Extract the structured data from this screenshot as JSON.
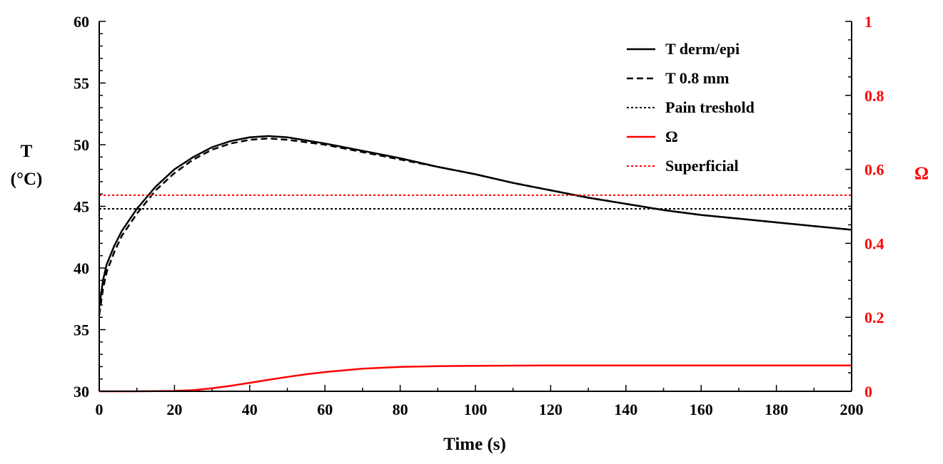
{
  "chart_data": {
    "type": "line",
    "xlabel": "Time (s)",
    "ylabel_line1": "T",
    "ylabel_line2": "(°C)",
    "y2label": "Ω",
    "xlim": [
      0,
      200
    ],
    "ylim": [
      30,
      60
    ],
    "y2lim": [
      0,
      1
    ],
    "xticks": [
      0,
      20,
      40,
      60,
      80,
      100,
      120,
      140,
      160,
      180,
      200
    ],
    "yticks": [
      30,
      35,
      40,
      45,
      50,
      55,
      60
    ],
    "y2ticks": [
      0,
      0.2,
      0.4,
      0.6,
      0.8,
      1
    ],
    "y2tick_labels": [
      "0",
      "0.2",
      "0.4",
      "0.6",
      "0.8",
      "1"
    ],
    "legend_position": "top-right",
    "colors": {
      "black": "#000000",
      "red": "#ff0000"
    },
    "series": [
      {
        "name": "T derm/epi",
        "axis": "left",
        "color": "#000000",
        "style": "solid",
        "x": [
          0,
          1,
          2,
          4,
          6,
          8,
          10,
          15,
          20,
          25,
          30,
          35,
          40,
          45,
          50,
          60,
          70,
          80,
          90,
          100,
          110,
          120,
          130,
          140,
          150,
          160,
          170,
          180,
          190,
          200
        ],
        "y": [
          36.8,
          39.0,
          40.3,
          41.8,
          43.0,
          43.9,
          44.8,
          46.6,
          48.0,
          49.0,
          49.8,
          50.3,
          50.6,
          50.7,
          50.6,
          50.1,
          49.5,
          48.9,
          48.2,
          47.6,
          46.9,
          46.3,
          45.7,
          45.2,
          44.7,
          44.3,
          44.0,
          43.7,
          43.4,
          43.1
        ]
      },
      {
        "name": "T 0.8 mm",
        "axis": "left",
        "color": "#000000",
        "style": "dashed",
        "x": [
          0,
          1,
          2,
          4,
          6,
          8,
          10,
          15,
          20,
          25,
          30,
          35,
          40,
          45,
          50,
          60,
          70,
          80,
          90,
          100,
          110,
          120,
          130,
          140,
          150,
          160,
          170,
          180,
          190,
          200
        ],
        "y": [
          36.2,
          38.3,
          39.7,
          41.3,
          42.6,
          43.5,
          44.4,
          46.3,
          47.7,
          48.8,
          49.6,
          50.1,
          50.4,
          50.5,
          50.4,
          50.0,
          49.4,
          48.8,
          48.2,
          47.6,
          46.9,
          46.3,
          45.7,
          45.2,
          44.7,
          44.3,
          44.0,
          43.7,
          43.4,
          43.1
        ]
      },
      {
        "name": "Pain treshold",
        "axis": "left",
        "color": "#000000",
        "style": "dotted",
        "x": [
          0,
          200
        ],
        "y": [
          44.8,
          44.8
        ]
      },
      {
        "name": "Ω",
        "axis": "right",
        "color": "#ff0000",
        "style": "solid",
        "x": [
          0,
          10,
          20,
          25,
          30,
          35,
          40,
          45,
          50,
          55,
          60,
          70,
          80,
          90,
          100,
          120,
          140,
          160,
          180,
          200
        ],
        "y": [
          0,
          0,
          0.001,
          0.003,
          0.008,
          0.015,
          0.023,
          0.031,
          0.039,
          0.046,
          0.052,
          0.061,
          0.066,
          0.068,
          0.069,
          0.07,
          0.07,
          0.07,
          0.07,
          0.07
        ]
      },
      {
        "name": "Superficial",
        "axis": "right",
        "color": "#ff0000",
        "style": "dotted",
        "x": [
          0,
          200
        ],
        "y": [
          0.53,
          0.53
        ]
      }
    ]
  }
}
